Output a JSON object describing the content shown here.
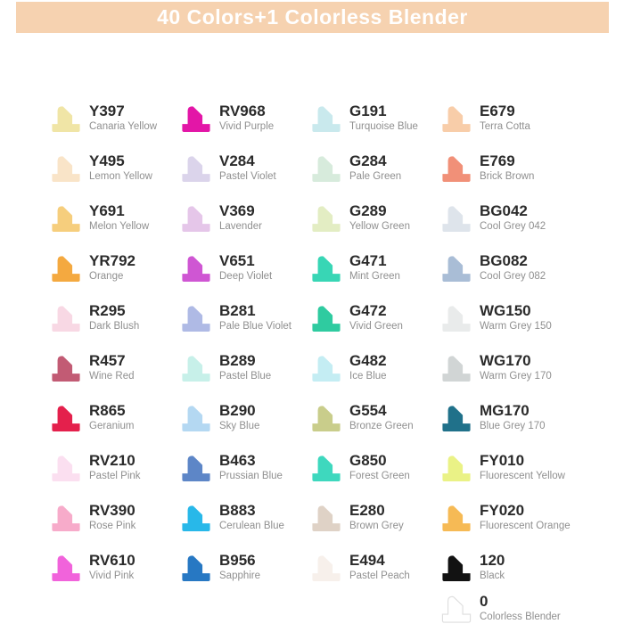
{
  "header": {
    "title": "40 Colors+1 Colorless Blender",
    "background": "#f6d2b0",
    "text_color": "#ffffff"
  },
  "columns": [
    {
      "items": [
        {
          "code": "Y397",
          "name": "Canaria Yellow",
          "color": "#f0e5a6"
        },
        {
          "code": "Y495",
          "name": "Lemon Yellow",
          "color": "#f9e4c8"
        },
        {
          "code": "Y691",
          "name": "Melon Yellow",
          "color": "#f6ce7d"
        },
        {
          "code": "YR792",
          "name": "Orange",
          "color": "#f4a940"
        },
        {
          "code": "R295",
          "name": "Dark Blush",
          "color": "#f8d8e4"
        },
        {
          "code": "R457",
          "name": "Wine Red",
          "color": "#c25b74"
        },
        {
          "code": "R865",
          "name": "Geranium",
          "color": "#e4204c"
        },
        {
          "code": "RV210",
          "name": "Pastel Pink",
          "color": "#fbdff0"
        },
        {
          "code": "RV390",
          "name": "Rose Pink",
          "color": "#f7abca"
        },
        {
          "code": "RV610",
          "name": "Vivid Pink",
          "color": "#f163db"
        }
      ]
    },
    {
      "items": [
        {
          "code": "RV968",
          "name": "Vivid Purple",
          "color": "#e316a7"
        },
        {
          "code": "V284",
          "name": "Pastel Violet",
          "color": "#dbd4eb"
        },
        {
          "code": "V369",
          "name": "Lavender",
          "color": "#e5c6e9"
        },
        {
          "code": "V651",
          "name": "Deep Violet",
          "color": "#cf56d3"
        },
        {
          "code": "B281",
          "name": "Pale Blue Violet",
          "color": "#afbae5"
        },
        {
          "code": "B289",
          "name": "Pastel Blue",
          "color": "#c7f0e9"
        },
        {
          "code": "B290",
          "name": "Sky Blue",
          "color": "#b4d8f2"
        },
        {
          "code": "B463",
          "name": "Prussian Blue",
          "color": "#5d86c7"
        },
        {
          "code": "B883",
          "name": "Cerulean Blue",
          "color": "#28b8e9"
        },
        {
          "code": "B956",
          "name": "Sapphire",
          "color": "#2778c3"
        }
      ]
    },
    {
      "items": [
        {
          "code": "G191",
          "name": "Turquoise Blue",
          "color": "#c9e9ed"
        },
        {
          "code": "G284",
          "name": "Pale Green",
          "color": "#d7ebdc"
        },
        {
          "code": "G289",
          "name": "Yellow Green",
          "color": "#e3edc3"
        },
        {
          "code": "G471",
          "name": "Mint Green",
          "color": "#38d6b5"
        },
        {
          "code": "G472",
          "name": "Vivid Green",
          "color": "#2fcba0"
        },
        {
          "code": "G482",
          "name": "Ice Blue",
          "color": "#c4edf3"
        },
        {
          "code": "G554",
          "name": "Bronze Green",
          "color": "#c9cd8b"
        },
        {
          "code": "G850",
          "name": "Forest Green",
          "color": "#3ed8be"
        },
        {
          "code": "E280",
          "name": "Brown Grey",
          "color": "#dfd2c6"
        },
        {
          "code": "E494",
          "name": "Pastel Peach",
          "color": "#f7f0eb"
        }
      ]
    },
    {
      "items": [
        {
          "code": "E679",
          "name": "Terra Cotta",
          "color": "#f8cda9"
        },
        {
          "code": "E769",
          "name": "Brick Brown",
          "color": "#f19078"
        },
        {
          "code": "BG042",
          "name": "Cool Grey 042",
          "color": "#dee4eb"
        },
        {
          "code": "BG082",
          "name": "Cool Grey 082",
          "color": "#a9bdd6"
        },
        {
          "code": "WG150",
          "name": "Warm Grey 150",
          "color": "#e9ebeb"
        },
        {
          "code": "WG170",
          "name": "Warm Grey 170",
          "color": "#d1d5d5"
        },
        {
          "code": "MG170",
          "name": "Blue Grey 170",
          "color": "#20718a"
        },
        {
          "code": "FY010",
          "name": "Fluorescent Yellow",
          "color": "#eaf286"
        },
        {
          "code": "FY020",
          "name": "Fluorescent Orange",
          "color": "#f6ba55"
        },
        {
          "code": "120",
          "name": "Black",
          "color": "#121212"
        },
        {
          "code": "0",
          "name": "Colorless Blender",
          "color": "#ffffff",
          "border": "#dedede"
        }
      ]
    }
  ]
}
